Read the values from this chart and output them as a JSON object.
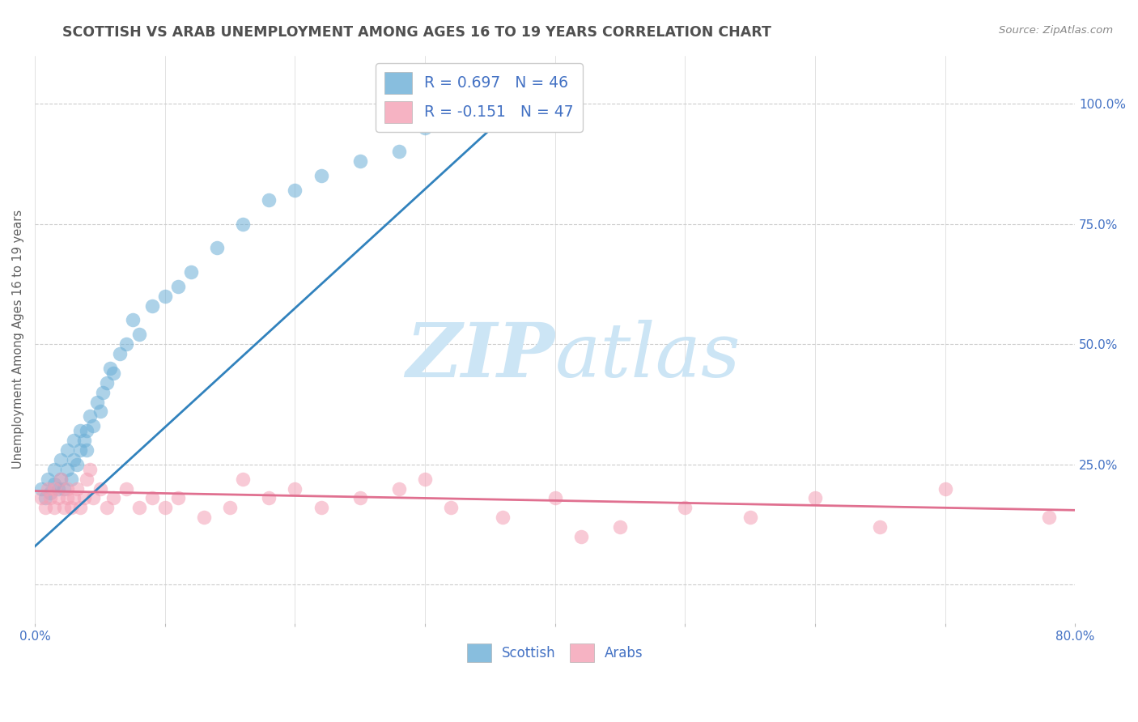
{
  "title": "SCOTTISH VS ARAB UNEMPLOYMENT AMONG AGES 16 TO 19 YEARS CORRELATION CHART",
  "source_text": "Source: ZipAtlas.com",
  "ylabel": "Unemployment Among Ages 16 to 19 years",
  "xlim": [
    0.0,
    0.8
  ],
  "ylim": [
    -0.08,
    1.1
  ],
  "xticks": [
    0.0,
    0.1,
    0.2,
    0.3,
    0.4,
    0.5,
    0.6,
    0.7,
    0.8
  ],
  "xticklabels": [
    "0.0%",
    "",
    "",
    "",
    "",
    "",
    "",
    "",
    "80.0%"
  ],
  "yticks": [
    0.0,
    0.25,
    0.5,
    0.75,
    1.0
  ],
  "yticklabels": [
    "",
    "25.0%",
    "50.0%",
    "75.0%",
    "100.0%"
  ],
  "scottish_R": 0.697,
  "scottish_N": 46,
  "arab_R": -0.151,
  "arab_N": 47,
  "scottish_color": "#6baed6",
  "arab_color": "#f4a0b5",
  "scottish_line_color": "#3182bd",
  "arab_line_color": "#e07090",
  "watermark_zip": "ZIP",
  "watermark_atlas": "atlas",
  "watermark_color": "#cce5f5",
  "legend_scottish_label": "Scottish",
  "legend_arab_label": "Arabs",
  "scottish_x": [
    0.005,
    0.008,
    0.01,
    0.012,
    0.015,
    0.015,
    0.018,
    0.02,
    0.02,
    0.022,
    0.025,
    0.025,
    0.028,
    0.03,
    0.03,
    0.032,
    0.035,
    0.035,
    0.038,
    0.04,
    0.04,
    0.042,
    0.045,
    0.048,
    0.05,
    0.052,
    0.055,
    0.058,
    0.06,
    0.065,
    0.07,
    0.075,
    0.08,
    0.09,
    0.1,
    0.11,
    0.12,
    0.14,
    0.16,
    0.18,
    0.2,
    0.22,
    0.25,
    0.28,
    0.3,
    0.32
  ],
  "scottish_y": [
    0.2,
    0.18,
    0.22,
    0.19,
    0.21,
    0.24,
    0.2,
    0.22,
    0.26,
    0.2,
    0.24,
    0.28,
    0.22,
    0.26,
    0.3,
    0.25,
    0.28,
    0.32,
    0.3,
    0.28,
    0.32,
    0.35,
    0.33,
    0.38,
    0.36,
    0.4,
    0.42,
    0.45,
    0.44,
    0.48,
    0.5,
    0.55,
    0.52,
    0.58,
    0.6,
    0.62,
    0.65,
    0.7,
    0.75,
    0.8,
    0.82,
    0.85,
    0.88,
    0.9,
    0.95,
    1.0
  ],
  "arab_x": [
    0.005,
    0.008,
    0.01,
    0.012,
    0.015,
    0.015,
    0.018,
    0.02,
    0.022,
    0.025,
    0.025,
    0.028,
    0.03,
    0.032,
    0.035,
    0.038,
    0.04,
    0.042,
    0.045,
    0.05,
    0.055,
    0.06,
    0.07,
    0.08,
    0.09,
    0.1,
    0.11,
    0.13,
    0.15,
    0.16,
    0.18,
    0.2,
    0.22,
    0.25,
    0.28,
    0.3,
    0.32,
    0.36,
    0.4,
    0.42,
    0.45,
    0.5,
    0.55,
    0.6,
    0.65,
    0.7,
    0.78
  ],
  "arab_y": [
    0.18,
    0.16,
    0.2,
    0.18,
    0.16,
    0.2,
    0.18,
    0.22,
    0.16,
    0.18,
    0.2,
    0.16,
    0.18,
    0.2,
    0.16,
    0.18,
    0.22,
    0.24,
    0.18,
    0.2,
    0.16,
    0.18,
    0.2,
    0.16,
    0.18,
    0.16,
    0.18,
    0.14,
    0.16,
    0.22,
    0.18,
    0.2,
    0.16,
    0.18,
    0.2,
    0.22,
    0.16,
    0.14,
    0.18,
    0.1,
    0.12,
    0.16,
    0.14,
    0.18,
    0.12,
    0.2,
    0.14
  ],
  "grid_color": "#cccccc",
  "bg_color": "#ffffff",
  "title_color": "#505050",
  "axis_label_color": "#606060",
  "tick_label_color": "#4472c4",
  "legend_R_color": "#4472c4",
  "scottish_line_x0": 0.0,
  "scottish_line_y0": 0.08,
  "scottish_line_x1": 0.38,
  "scottish_line_y1": 1.02,
  "arab_line_x0": 0.0,
  "arab_line_y0": 0.195,
  "arab_line_x1": 0.8,
  "arab_line_y1": 0.155
}
